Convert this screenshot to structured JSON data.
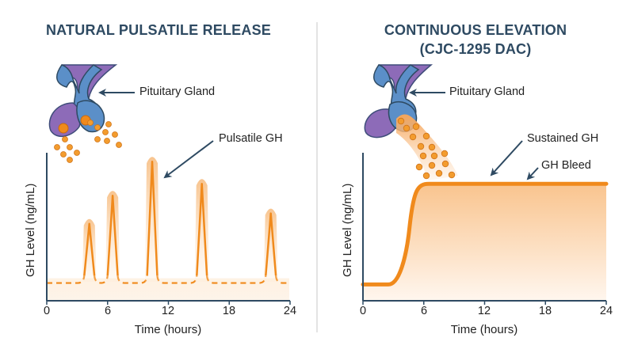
{
  "colors": {
    "title": "#2e4a62",
    "ghLine": "#f08a1c",
    "glow": "#f9c890",
    "glandBlue": "#5b8fc8",
    "glandPurple": "#8d6bb8",
    "axis": "#2e4a62"
  },
  "left": {
    "title": "NATURAL PULSATILE RELEASE",
    "gland_label": "Pituitary Gland",
    "annotation": "Pulsatile GH"
  },
  "right": {
    "title_line1": "CONTINUOUS ELEVATION",
    "title_line2": "(CJC-1295 DAC)",
    "gland_label": "Pituitary Gland",
    "annotation1": "Sustained GH",
    "annotation2": "GH Bleed"
  },
  "chart_data": [
    {
      "type": "line",
      "xlabel": "Time (hours)",
      "ylabel": "GH Level (ng/mL)",
      "xlim": [
        0,
        24
      ],
      "xticks": [
        "0",
        "6",
        "12",
        "18",
        "24"
      ],
      "ylim": [
        0,
        1
      ],
      "baseline": 0.12,
      "baseline_style": "dashed",
      "peaks": [
        {
          "x": 4.2,
          "y": 0.52
        },
        {
          "x": 6.5,
          "y": 0.71
        },
        {
          "x": 10.4,
          "y": 0.94
        },
        {
          "x": 15.3,
          "y": 0.79
        },
        {
          "x": 22.1,
          "y": 0.59
        }
      ]
    },
    {
      "type": "area",
      "xlabel": "Time (hours)",
      "ylabel": "GH Level (ng/mL)",
      "xlim": [
        0,
        24
      ],
      "xticks": [
        "0",
        "6",
        "12",
        "18",
        "24"
      ],
      "ylim": [
        0,
        1
      ],
      "x": [
        0,
        2.5,
        3.5,
        4.5,
        5.5,
        6.5,
        24
      ],
      "y": [
        0.11,
        0.11,
        0.2,
        0.45,
        0.72,
        0.79,
        0.79
      ]
    }
  ]
}
